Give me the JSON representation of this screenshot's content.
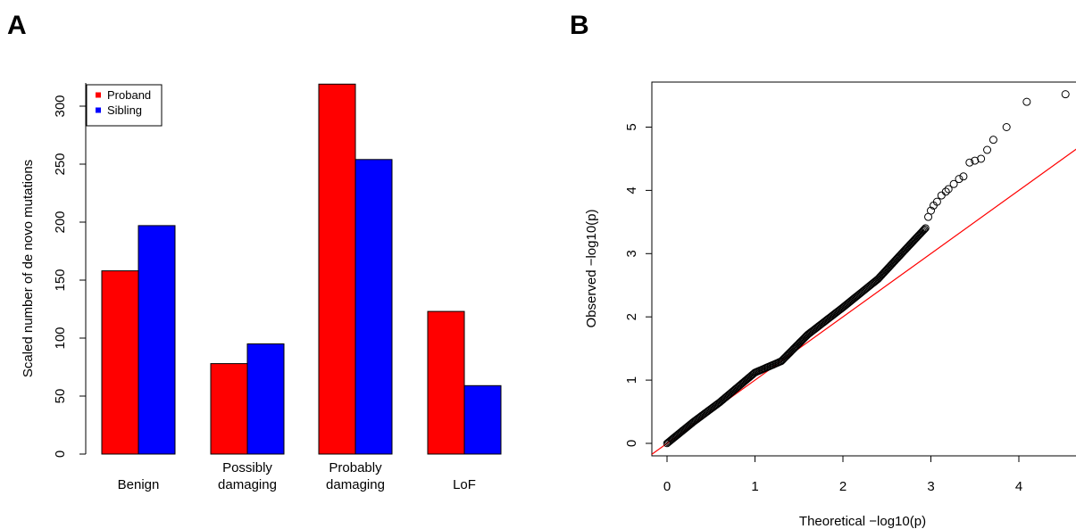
{
  "panels": {
    "a_label": "A",
    "b_label": "B"
  },
  "chart_data": [
    {
      "type": "bar",
      "categories": [
        [
          "Benign"
        ],
        [
          "Possibly",
          "damaging"
        ],
        [
          "Probably",
          "damaging"
        ],
        [
          "LoF"
        ]
      ],
      "series": [
        {
          "name": "Proband",
          "color": "#ff0000",
          "values": [
            158,
            78,
            319,
            123
          ]
        },
        {
          "name": "Sibling",
          "color": "#0000ff",
          "values": [
            197,
            95,
            254,
            59
          ]
        }
      ],
      "title": "",
      "xlabel": "",
      "ylabel": "Scaled number of de novo mutations",
      "ylim": [
        0,
        320
      ],
      "yticks": [
        0,
        50,
        100,
        150,
        200,
        250,
        300
      ],
      "legend": "top-left",
      "grid": false
    },
    {
      "type": "scatter",
      "title": "",
      "xlabel": "Theoretical −log10(p)",
      "ylabel": "Observed −log10(p)",
      "xlim": [
        0,
        4.6
      ],
      "ylim": [
        0,
        5.5
      ],
      "xticks": [
        0,
        1,
        2,
        3,
        4
      ],
      "yticks": [
        0,
        1,
        2,
        3,
        4,
        5
      ],
      "reference_line": {
        "slope": 1,
        "intercept": 0,
        "color": "#ff0000"
      },
      "grid": false,
      "dense_curve": [
        [
          0,
          0
        ],
        [
          0.3,
          0.34
        ],
        [
          0.6,
          0.65
        ],
        [
          1.0,
          1.12
        ],
        [
          1.3,
          1.3
        ],
        [
          1.6,
          1.72
        ],
        [
          2.0,
          2.15
        ],
        [
          2.4,
          2.6
        ],
        [
          2.7,
          3.05
        ],
        [
          2.95,
          3.42
        ]
      ],
      "points": [
        [
          2.97,
          3.58
        ],
        [
          3.0,
          3.68
        ],
        [
          3.03,
          3.76
        ],
        [
          3.07,
          3.82
        ],
        [
          3.12,
          3.92
        ],
        [
          3.17,
          3.98
        ],
        [
          3.2,
          4.02
        ],
        [
          3.26,
          4.1
        ],
        [
          3.32,
          4.18
        ],
        [
          3.37,
          4.22
        ],
        [
          3.44,
          4.44
        ],
        [
          3.5,
          4.47
        ],
        [
          3.57,
          4.5
        ],
        [
          3.64,
          4.64
        ],
        [
          3.71,
          4.8
        ],
        [
          3.86,
          5.0
        ],
        [
          4.09,
          5.4
        ],
        [
          4.53,
          5.52
        ]
      ]
    }
  ]
}
